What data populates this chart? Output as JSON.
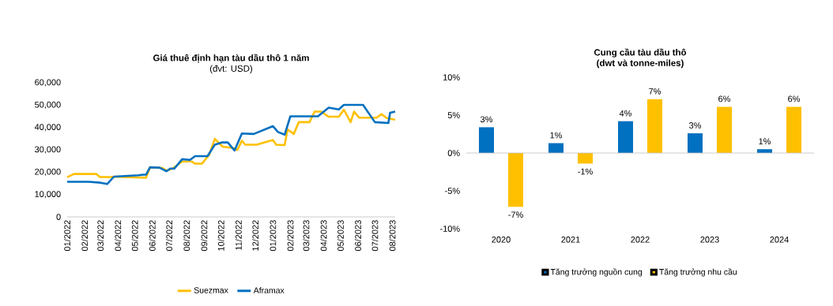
{
  "chart_data": [
    {
      "type": "line",
      "title": "Giá thuê định hạn tàu dầu thô 1 năm",
      "subtitle": "(đvt: USD)",
      "xlim": [
        "2022-01-01",
        "2023-08-06"
      ],
      "xticks": [
        {
          "value": "2022-01-01",
          "label": "01/2022"
        },
        {
          "value": "2022-02-01",
          "label": "02/2022"
        },
        {
          "value": "2022-03-01",
          "label": "03/2022"
        },
        {
          "value": "2022-04-01",
          "label": "04/2022"
        },
        {
          "value": "2022-05-01",
          "label": "05/2022"
        },
        {
          "value": "2022-06-01",
          "label": "06/2022"
        },
        {
          "value": "2022-07-01",
          "label": "07/2022"
        },
        {
          "value": "2022-08-01",
          "label": "08/2022"
        },
        {
          "value": "2022-09-01",
          "label": "09/2022"
        },
        {
          "value": "2022-10-01",
          "label": "10/2022"
        },
        {
          "value": "2022-11-01",
          "label": "11/2022"
        },
        {
          "value": "2022-12-01",
          "label": "12/2022"
        },
        {
          "value": "2023-01-01",
          "label": "01/2023"
        },
        {
          "value": "2023-02-01",
          "label": "02/2023"
        },
        {
          "value": "2023-03-01",
          "label": "03/2023"
        },
        {
          "value": "2023-04-01",
          "label": "04/2023"
        },
        {
          "value": "2023-05-01",
          "label": "05/2023"
        },
        {
          "value": "2023-06-01",
          "label": "06/2023"
        },
        {
          "value": "2023-07-01",
          "label": "07/2023"
        },
        {
          "value": "2023-08-01",
          "label": "08/2023"
        }
      ],
      "ylim": [
        0,
        60000
      ],
      "yticks": [
        {
          "value": 0,
          "label": "0"
        },
        {
          "value": 10000,
          "label": "10,000"
        },
        {
          "value": 20000,
          "label": "20,000"
        },
        {
          "value": 30000,
          "label": "30,000"
        },
        {
          "value": 40000,
          "label": "40,000"
        },
        {
          "value": 50000,
          "label": "50,000"
        },
        {
          "value": 60000,
          "label": "60,000"
        }
      ],
      "legend": "bottom",
      "series": [
        {
          "name": "Suezmax",
          "color": "#ffc000",
          "x": [
            "2022-01-01",
            "2022-01-13",
            "2022-02-22",
            "2022-02-28",
            "2022-03-20",
            "2022-03-25",
            "2022-05-21",
            "2022-05-28",
            "2022-06-19",
            "2022-06-26",
            "2022-07-07",
            "2022-07-24",
            "2022-08-10",
            "2022-08-16",
            "2022-08-28",
            "2022-09-10",
            "2022-09-20",
            "2022-10-04",
            "2022-10-21",
            "2022-10-30",
            "2022-11-07",
            "2022-11-13",
            "2022-12-03",
            "2023-01-01",
            "2023-01-07",
            "2023-01-22",
            "2023-01-27",
            "2023-02-07",
            "2023-02-16",
            "2023-03-07",
            "2023-03-16",
            "2023-03-28",
            "2023-04-10",
            "2023-04-28",
            "2023-05-07",
            "2023-05-19",
            "2023-05-25",
            "2023-06-03",
            "2023-07-04",
            "2023-07-13",
            "2023-07-22",
            "2023-08-06"
          ],
          "values": [
            17800,
            19200,
            19200,
            17800,
            17800,
            18000,
            17500,
            22200,
            21900,
            20700,
            21600,
            24800,
            24800,
            23800,
            23800,
            27800,
            34900,
            31400,
            30900,
            29900,
            34100,
            32300,
            32300,
            34400,
            32300,
            32100,
            39200,
            37100,
            42400,
            42400,
            47100,
            47100,
            44800,
            44800,
            48000,
            42400,
            47100,
            44400,
            44400,
            46000,
            44200,
            43500
          ]
        },
        {
          "name": "Aframax",
          "color": "#0070c0",
          "x": [
            "2022-01-01",
            "2022-02-08",
            "2022-03-01",
            "2022-03-13",
            "2022-03-25",
            "2022-05-07",
            "2022-05-16",
            "2022-05-21",
            "2022-05-28",
            "2022-06-14",
            "2022-06-26",
            "2022-07-03",
            "2022-07-10",
            "2022-07-24",
            "2022-08-07",
            "2022-08-16",
            "2022-09-07",
            "2022-09-20",
            "2022-10-02",
            "2022-10-13",
            "2022-10-25",
            "2022-11-07",
            "2022-11-28",
            "2023-01-01",
            "2023-01-10",
            "2023-01-22",
            "2023-02-01",
            "2023-03-22",
            "2023-04-10",
            "2023-04-28",
            "2023-05-07",
            "2023-06-10",
            "2023-07-01",
            "2023-07-25",
            "2023-07-28",
            "2023-08-06"
          ],
          "values": [
            15700,
            15700,
            15300,
            14700,
            18000,
            18600,
            18900,
            18900,
            22200,
            22000,
            20400,
            21600,
            21600,
            25800,
            25500,
            27200,
            27200,
            32300,
            33300,
            33300,
            29700,
            37300,
            37100,
            40600,
            38000,
            36800,
            45000,
            45000,
            48900,
            48100,
            50100,
            50100,
            42400,
            42000,
            46600,
            47100
          ]
        }
      ]
    },
    {
      "type": "bar",
      "title": "Cung cầu tàu dầu thô",
      "subtitle": "(dwt và tonne-miles)",
      "categories": [
        "2020",
        "2021",
        "2022",
        "2023",
        "2024"
      ],
      "ylim": [
        -10,
        10
      ],
      "yticks": [
        {
          "value": -10,
          "label": "-10%"
        },
        {
          "value": -5,
          "label": "-5%"
        },
        {
          "value": 0,
          "label": "0%"
        },
        {
          "value": 5,
          "label": "5%"
        },
        {
          "value": 10,
          "label": "10%"
        }
      ],
      "legend": "bottom",
      "series": [
        {
          "name": "Tăng trưởng nguồn cung",
          "color": "#0070c0",
          "values": [
            3.4,
            1.3,
            4.2,
            2.6,
            0.5
          ],
          "value_labels": [
            "3%",
            "1%",
            "4%",
            "3%",
            "1%"
          ]
        },
        {
          "name": "Tăng trưởng nhu cầu",
          "color": "#ffc000",
          "values": [
            -7.1,
            -1.4,
            7.1,
            6.1,
            6.1
          ],
          "value_labels": [
            "-7%",
            "-1%",
            "7%",
            "6%",
            "6%"
          ]
        }
      ]
    }
  ]
}
